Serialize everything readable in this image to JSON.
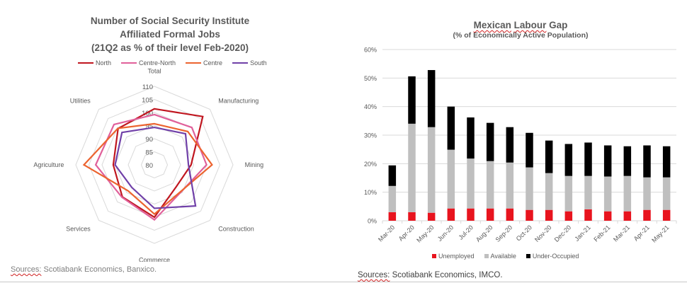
{
  "chart_data": [
    {
      "type": "radar",
      "title": [
        "Number of Social Security Institute",
        "Affiliated Formal Jobs",
        "(21Q2 as % of their level Feb-2020)"
      ],
      "axes": [
        "Total",
        "Manufacturing",
        "Mining",
        "Construction",
        "Commerce",
        "Services",
        "Agriculture",
        "Utilities"
      ],
      "range": [
        80,
        110
      ],
      "ticks": [
        80,
        85,
        90,
        95,
        100,
        105,
        110
      ],
      "grid": true,
      "legend_position": "top",
      "series": [
        {
          "name": "North",
          "color": "#C0161F",
          "values": [
            101.4,
            106.1,
            94.0,
            91.8,
            100.0,
            97.3,
            95.7,
            99.6
          ]
        },
        {
          "name": "Centre-North",
          "color": "#E0609A",
          "values": [
            99.2,
            100.2,
            99.9,
            94.5,
            101.0,
            97.5,
            102.4,
            101.8
          ]
        },
        {
          "name": "Centre",
          "color": "#EC6430",
          "values": [
            95.7,
            98.0,
            102.0,
            94.3,
            98.8,
            94.1,
            106.9,
            99.7
          ]
        },
        {
          "name": "South",
          "color": "#7040A8",
          "values": [
            94.3,
            96.8,
            93.0,
            102.2,
            96.6,
            92.2,
            95.0,
            97.5
          ]
        }
      ],
      "source": "Sources: Scotiabank Economics, Banxico."
    },
    {
      "type": "bar",
      "stacked": true,
      "title": "Mexican Labour Gap",
      "subtitle": "(% of Economically Active Population)",
      "categories": [
        "Mar-20",
        "Apr-20",
        "May-20",
        "Jun-20",
        "Jul-20",
        "Aug-20",
        "Sep-20",
        "Oct-20",
        "Nov-20",
        "Dec-20",
        "Jan-21",
        "Feb-21",
        "Mar-21",
        "Apr-21",
        "May-21"
      ],
      "series": [
        {
          "name": "Unemployed",
          "color": "#E8141E",
          "values": [
            3.0,
            3.0,
            2.8,
            4.3,
            4.3,
            4.3,
            4.3,
            3.8,
            3.8,
            3.3,
            4.0,
            3.3,
            3.3,
            3.8,
            3.8
          ]
        },
        {
          "name": "Available",
          "color": "#BFBFBF",
          "values": [
            9.2,
            31.0,
            30.0,
            20.6,
            17.5,
            16.6,
            16.1,
            14.9,
            12.9,
            12.4,
            11.7,
            12.2,
            12.4,
            11.4,
            11.4
          ]
        },
        {
          "name": "Under-Occupied",
          "color": "#000000",
          "values": [
            7.2,
            16.6,
            20.0,
            15.1,
            14.4,
            13.4,
            12.4,
            12.1,
            11.4,
            11.2,
            11.7,
            10.9,
            10.4,
            11.2,
            10.9
          ]
        }
      ],
      "xlabel": "",
      "ylabel": "",
      "ylim": [
        0,
        60
      ],
      "yticks": [
        "0%",
        "10%",
        "20%",
        "30%",
        "40%",
        "50%",
        "60%"
      ],
      "grid": true,
      "legend_position": "bottom",
      "source": "Sources: Scotiabank Economics, IMCO."
    }
  ],
  "radar": {
    "title_lines": [
      "Number of Social Security Institute",
      "Affiliated Formal Jobs",
      "(21Q2 as % of their level Feb-2020)"
    ],
    "legend": [
      "North",
      "Centre-North",
      "Centre",
      "South"
    ],
    "source_prefix": "Sources:",
    "source_rest": " Scotiabank Economics, Banxico."
  },
  "bars": {
    "title_word1": "Mexican",
    "title_word2": "Labour",
    "title_word3": " Gap",
    "subtitle": "(% of Economically Active Population)",
    "legend": [
      "Unemployed",
      "Available",
      "Under-Occupied"
    ],
    "source_prefix": "Sources:",
    "source_rest": " Scotiabank Economics, IMCO."
  }
}
